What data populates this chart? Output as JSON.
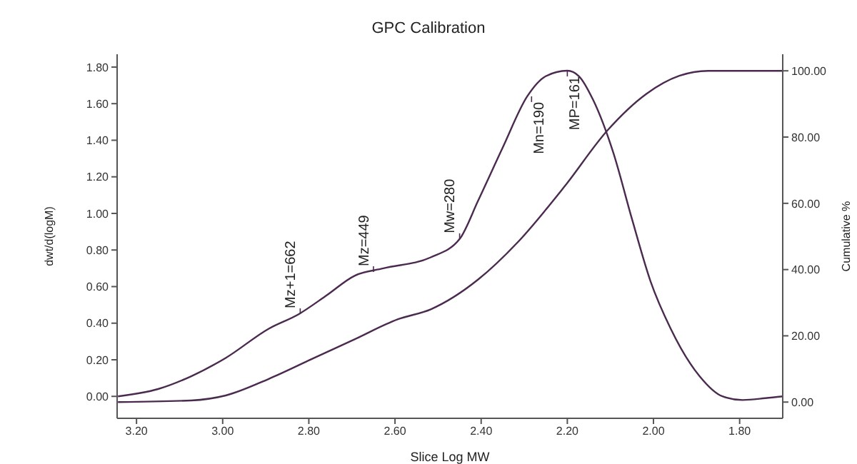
{
  "chart_data": {
    "type": "line",
    "title": "GPC Calibration",
    "xlabel": "Slice Log MW",
    "ylabel": "dwt/d(logM)",
    "y2label": "Cumulative %",
    "xlim": [
      3.245,
      1.7
    ],
    "xticks": [
      {
        "value": 3.2,
        "label": "3.20"
      },
      {
        "value": 3.0,
        "label": "3.00"
      },
      {
        "value": 2.8,
        "label": "2.80"
      },
      {
        "value": 2.6,
        "label": "2.60"
      },
      {
        "value": 2.4,
        "label": "2.40"
      },
      {
        "value": 2.2,
        "label": "2.20"
      },
      {
        "value": 2.0,
        "label": "2.00"
      },
      {
        "value": 1.8,
        "label": "1.80"
      }
    ],
    "ylim": [
      -0.12,
      1.87
    ],
    "yticks": [
      {
        "value": 0,
        "label": "0.00"
      },
      {
        "value": 0.2,
        "label": "0.20"
      },
      {
        "value": 0.4,
        "label": "0.40"
      },
      {
        "value": 0.6,
        "label": "0.60"
      },
      {
        "value": 0.8,
        "label": "0.80"
      },
      {
        "value": 1.0,
        "label": "1.00"
      },
      {
        "value": 1.2,
        "label": "1.20"
      },
      {
        "value": 1.4,
        "label": "1.40"
      },
      {
        "value": 1.6,
        "label": "1.60"
      },
      {
        "value": 1.8,
        "label": "1.80"
      }
    ],
    "y2lim": [
      -4.9,
      105
    ],
    "y2ticks": [
      {
        "value": 0,
        "label": "0.00"
      },
      {
        "value": 20,
        "label": "20.00"
      },
      {
        "value": 40,
        "label": "40.00"
      },
      {
        "value": 60,
        "label": "60.00"
      },
      {
        "value": 80,
        "label": "80.00"
      },
      {
        "value": 100,
        "label": "100.00"
      }
    ],
    "grid": false,
    "legend": false,
    "marker": "none",
    "line_style": "solid",
    "series": [
      {
        "color": "#4b2a4f",
        "x": [
          3.243,
          3.15,
          3.073,
          2.993,
          2.893,
          2.823,
          2.76,
          2.693,
          2.627,
          2.517,
          2.45,
          2.407,
          2.35,
          2.293,
          2.25,
          2.2,
          2.173,
          2.14,
          2.093,
          2.05,
          2.007,
          1.96,
          1.893,
          1.84,
          1.793,
          1.74,
          1.7
        ],
        "values": [
          0.0,
          0.04,
          0.11,
          0.21,
          0.37,
          0.45,
          0.55,
          0.66,
          0.7,
          0.76,
          0.86,
          1.07,
          1.36,
          1.64,
          1.75,
          1.78,
          1.75,
          1.62,
          1.33,
          0.97,
          0.63,
          0.37,
          0.11,
          0.0,
          -0.02,
          -0.01,
          0.0
        ]
      },
      {
        "color": "#4b2a4f",
        "axis": "y2",
        "x": [
          3.243,
          3.073,
          2.993,
          2.893,
          2.793,
          2.693,
          2.593,
          2.517,
          2.407,
          2.317,
          2.207,
          2.107,
          2.017,
          1.94,
          1.873,
          1.7
        ],
        "values": [
          0,
          0.5,
          2,
          7,
          13,
          19,
          25,
          28,
          37,
          48,
          65,
          82,
          93,
          98.5,
          100,
          100
        ]
      }
    ],
    "annotations": [
      {
        "text": "Mz+1=662",
        "x": 2.82,
        "y": 0.45
      },
      {
        "text": "Mz=449",
        "x": 2.65,
        "y": 0.68
      },
      {
        "text": "Mw=280",
        "x": 2.45,
        "y": 0.86
      },
      {
        "text": "Mn=190",
        "x": 2.283,
        "y": 1.64
      },
      {
        "text": "MP=161",
        "x": 2.2,
        "y": 1.78
      }
    ]
  }
}
